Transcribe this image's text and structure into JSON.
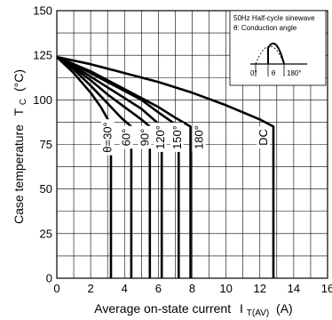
{
  "chart_data": {
    "type": "line",
    "xlabel": "Average on-state current",
    "xlabel_symbol": "I",
    "xlabel_subscript": "T(AV)",
    "xlabel_unit": "(A)",
    "ylabel": "Case temperature",
    "ylabel_symbol": "T",
    "ylabel_subscript": "C",
    "ylabel_unit": "(°C)",
    "xlim": [
      0,
      16
    ],
    "ylim": [
      0,
      150
    ],
    "xticks": [
      0,
      2,
      4,
      6,
      8,
      10,
      12,
      14,
      16
    ],
    "yticks": [
      0,
      25,
      50,
      75,
      100,
      125,
      150
    ],
    "grid": true,
    "legend": {
      "position": "top-right",
      "line1": "50Hz Half-cycle sinewave",
      "line2": "θ: Conduction angle",
      "label_0": "0°",
      "label_theta": "θ",
      "label_180": "180°"
    },
    "series": [
      {
        "name": "θ=30°",
        "points": [
          [
            0,
            124
          ],
          [
            1,
            115
          ],
          [
            2,
            104
          ],
          [
            2.6,
            96
          ],
          [
            3.2,
            86
          ],
          [
            3.2,
            0
          ]
        ]
      },
      {
        "name": "60°",
        "points": [
          [
            0,
            124
          ],
          [
            1,
            117
          ],
          [
            2,
            108
          ],
          [
            3,
            98
          ],
          [
            3.8,
            90
          ],
          [
            4.4,
            85
          ],
          [
            4.4,
            0
          ]
        ]
      },
      {
        "name": "90°",
        "points": [
          [
            0,
            124
          ],
          [
            1,
            118
          ],
          [
            2,
            111
          ],
          [
            3,
            103
          ],
          [
            4,
            96
          ],
          [
            5,
            89
          ],
          [
            5.5,
            85
          ],
          [
            5.5,
            0
          ]
        ]
      },
      {
        "name": "120°",
        "points": [
          [
            0,
            124
          ],
          [
            1,
            119
          ],
          [
            2,
            113
          ],
          [
            3,
            107
          ],
          [
            4,
            101
          ],
          [
            5,
            95
          ],
          [
            6.2,
            85
          ],
          [
            6.2,
            0
          ]
        ]
      },
      {
        "name": "150°",
        "points": [
          [
            0,
            124
          ],
          [
            1,
            120
          ],
          [
            2,
            115
          ],
          [
            3,
            110
          ],
          [
            4,
            105
          ],
          [
            5,
            100
          ],
          [
            6,
            93
          ],
          [
            7.2,
            85
          ],
          [
            7.2,
            0
          ]
        ]
      },
      {
        "name": "180°",
        "points": [
          [
            0,
            124
          ],
          [
            1,
            120
          ],
          [
            2,
            116
          ],
          [
            3,
            111
          ],
          [
            4,
            106
          ],
          [
            5,
            101
          ],
          [
            6,
            96
          ],
          [
            7,
            90
          ],
          [
            7.9,
            85
          ],
          [
            7.9,
            0
          ]
        ]
      },
      {
        "name": "DC",
        "points": [
          [
            0,
            124
          ],
          [
            2,
            120
          ],
          [
            4,
            115
          ],
          [
            6,
            110
          ],
          [
            8,
            104
          ],
          [
            10,
            97
          ],
          [
            12,
            89
          ],
          [
            12.8,
            85
          ],
          [
            12.8,
            0
          ]
        ]
      }
    ],
    "series_labels": [
      {
        "text": "θ=30°",
        "x": 3.0,
        "y": 79
      },
      {
        "text": "60°",
        "x": 4.1,
        "y": 79
      },
      {
        "text": "90°",
        "x": 5.2,
        "y": 79
      },
      {
        "text": "120°",
        "x": 6.1,
        "y": 79
      },
      {
        "text": "150°",
        "x": 7.1,
        "y": 79
      },
      {
        "text": "180°",
        "x": 8.4,
        "y": 79
      },
      {
        "text": "DC",
        "x": 12.2,
        "y": 79
      }
    ]
  }
}
